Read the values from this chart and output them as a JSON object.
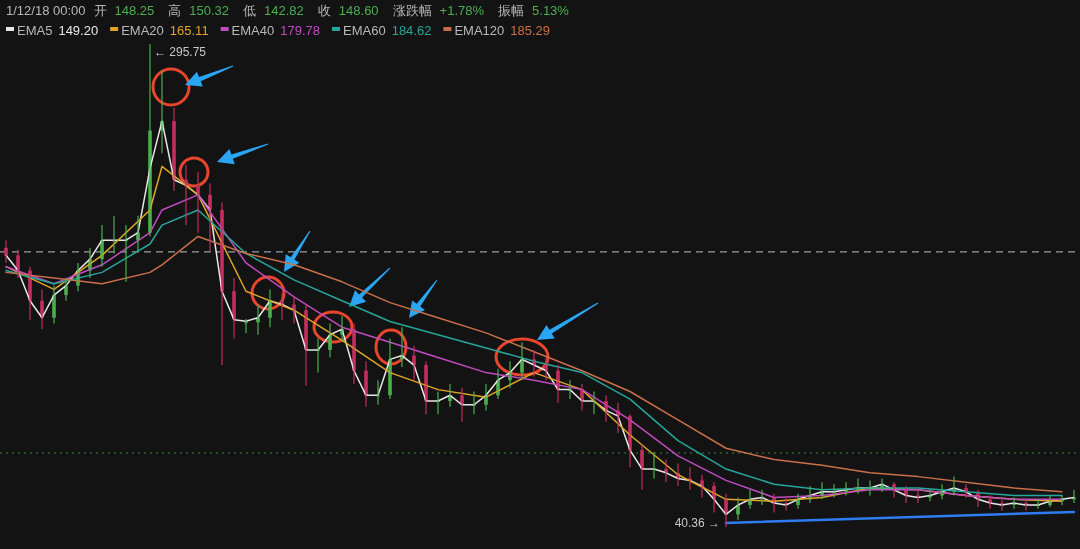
{
  "chart_data": {
    "type": "candlestick",
    "legend": "top left",
    "categories": [
      null,
      null,
      null,
      null,
      null,
      null,
      null,
      null,
      null,
      null,
      null,
      null,
      null,
      null,
      null,
      null,
      null,
      null,
      null,
      null,
      null,
      null,
      null,
      null,
      null,
      null,
      null,
      null,
      null,
      null,
      null,
      null,
      null,
      null,
      null,
      null,
      null,
      null,
      null,
      null,
      null,
      null,
      null,
      null,
      null,
      null,
      null,
      null,
      null,
      null,
      null,
      null,
      null,
      null,
      null,
      null,
      null,
      null,
      null,
      null,
      null,
      null,
      null,
      null,
      null,
      null,
      null,
      null,
      null,
      null,
      null,
      null,
      null,
      null,
      null,
      null,
      null,
      null,
      null,
      null,
      null,
      null,
      null,
      null,
      null,
      null,
      null,
      null,
      null,
      null
    ],
    "ohlc": [
      [
        188,
        192,
        180,
        184
      ],
      [
        184,
        187,
        172,
        176
      ],
      [
        176,
        178,
        150,
        160
      ],
      [
        160,
        166,
        145,
        151
      ],
      [
        151,
        168,
        148,
        163
      ],
      [
        163,
        172,
        160,
        168
      ],
      [
        168,
        180,
        165,
        176
      ],
      [
        176,
        188,
        172,
        182
      ],
      [
        182,
        200,
        178,
        192
      ],
      [
        192,
        205,
        185,
        192
      ],
      [
        192,
        200,
        170,
        192
      ],
      [
        192,
        205,
        186,
        196
      ],
      [
        196,
        295.75,
        194,
        250
      ],
      [
        250,
        282,
        238,
        255
      ],
      [
        255,
        262,
        218,
        224
      ],
      [
        224,
        232,
        200,
        221
      ],
      [
        221,
        228,
        196,
        216
      ],
      [
        216,
        222,
        186,
        208
      ],
      [
        208,
        212,
        126,
        165
      ],
      [
        165,
        172,
        140,
        150
      ],
      [
        148.25,
        150.32,
        142.82,
        148.6
      ],
      [
        148.6,
        158,
        142,
        151
      ],
      [
        151,
        166,
        146,
        160
      ],
      [
        160,
        164,
        150,
        158
      ],
      [
        158,
        162,
        148,
        155
      ],
      [
        155,
        158,
        115,
        134
      ],
      [
        134,
        140,
        122,
        134
      ],
      [
        134,
        148,
        130,
        142
      ],
      [
        142,
        152,
        138,
        145
      ],
      [
        145,
        148,
        116,
        123
      ],
      [
        123,
        128,
        104,
        110
      ],
      [
        110,
        118,
        105,
        110
      ],
      [
        110,
        140,
        108,
        129
      ],
      [
        129,
        146,
        125,
        131
      ],
      [
        131,
        136,
        118,
        126
      ],
      [
        126,
        128,
        100,
        107
      ],
      [
        107,
        112,
        100,
        107
      ],
      [
        107,
        116,
        104,
        110
      ],
      [
        110,
        114,
        96,
        105
      ],
      [
        105,
        112,
        100,
        105
      ],
      [
        105,
        116,
        102,
        110
      ],
      [
        110,
        124,
        108,
        118
      ],
      [
        118,
        128,
        114,
        122
      ],
      [
        122,
        138,
        118,
        129
      ],
      [
        129,
        134,
        120,
        126
      ],
      [
        126,
        130,
        118,
        123
      ],
      [
        123,
        126,
        106,
        113
      ],
      [
        113,
        118,
        108,
        113
      ],
      [
        113,
        116,
        102,
        107
      ],
      [
        107,
        112,
        100,
        107
      ],
      [
        107,
        110,
        96,
        102
      ],
      [
        102,
        106,
        90,
        99
      ],
      [
        99,
        100,
        72,
        81
      ],
      [
        81,
        84,
        60,
        71
      ],
      [
        71,
        80,
        66,
        71
      ],
      [
        71,
        76,
        64,
        69
      ],
      [
        69,
        74,
        62,
        66
      ],
      [
        66,
        72,
        60,
        65
      ],
      [
        65,
        68,
        56,
        62
      ],
      [
        62,
        64,
        48,
        55
      ],
      [
        55,
        58,
        40.36,
        47
      ],
      [
        47,
        56,
        44,
        52
      ],
      [
        52,
        60,
        50,
        55
      ],
      [
        55,
        60,
        52,
        56
      ],
      [
        56,
        58,
        48,
        53
      ],
      [
        53,
        56,
        49,
        52
      ],
      [
        52,
        58,
        50,
        55
      ],
      [
        55,
        62,
        53,
        57
      ],
      [
        57,
        64,
        55,
        59
      ],
      [
        59,
        63,
        56,
        59
      ],
      [
        59,
        64,
        57,
        60
      ],
      [
        60,
        66,
        58,
        61
      ],
      [
        61,
        65,
        57,
        61
      ],
      [
        61,
        66,
        59,
        63
      ],
      [
        63,
        64,
        56,
        60
      ],
      [
        60,
        62,
        53,
        57
      ],
      [
        57,
        60,
        53,
        56
      ],
      [
        56,
        60,
        54,
        57
      ],
      [
        57,
        63,
        55,
        59
      ],
      [
        59,
        67,
        57,
        61
      ],
      [
        61,
        63,
        56,
        59
      ],
      [
        59,
        60,
        51,
        55
      ],
      [
        55,
        57,
        50,
        53
      ],
      [
        53,
        55,
        49,
        52
      ],
      [
        52,
        56,
        50,
        53
      ],
      [
        53,
        55,
        49,
        52
      ],
      [
        52,
        55,
        50,
        52
      ],
      [
        52,
        57,
        51,
        54
      ],
      [
        54,
        57,
        52,
        55
      ],
      [
        55,
        60,
        53,
        56
      ]
    ],
    "series": [
      {
        "name": "EMA5",
        "type": "line",
        "color": "#e8e8e8",
        "values": [
          184,
          176,
          160,
          151,
          163,
          168,
          176,
          182,
          192,
          192,
          192,
          196,
          230,
          255,
          224,
          221,
          216,
          208,
          165,
          150,
          149.2,
          151,
          160,
          158,
          155,
          134,
          134,
          142,
          145,
          123,
          110,
          110,
          129,
          131,
          126,
          107,
          107,
          110,
          105,
          105,
          110,
          118,
          122,
          129,
          126,
          123,
          113,
          113,
          107,
          107,
          102,
          99,
          81,
          71,
          71,
          69,
          66,
          65,
          62,
          55,
          47,
          52,
          55,
          56,
          53,
          52,
          55,
          57,
          59,
          59,
          60,
          61,
          61,
          63,
          60,
          57,
          56,
          57,
          59,
          61,
          59,
          55,
          53,
          52,
          53,
          52,
          52,
          54,
          55,
          56
        ]
      },
      {
        "name": "EMA20",
        "type": "line",
        "color": "#e0a526",
        "values": [
          178,
          null,
          null,
          null,
          166,
          null,
          null,
          null,
          184,
          null,
          null,
          null,
          208,
          231,
          null,
          null,
          216,
          null,
          null,
          null,
          165,
          null,
          null,
          null,
          155,
          null,
          null,
          null,
          139,
          null,
          null,
          null,
          122,
          null,
          null,
          null,
          113,
          null,
          null,
          null,
          109,
          null,
          null,
          null,
          122,
          null,
          null,
          null,
          113,
          null,
          null,
          null,
          89,
          null,
          null,
          null,
          68,
          null,
          null,
          null,
          55,
          null,
          null,
          null,
          54,
          null,
          null,
          null,
          56,
          null,
          null,
          null,
          61,
          null,
          null,
          null,
          60,
          null,
          null,
          null,
          57,
          null,
          null,
          null,
          55,
          null,
          null,
          null,
          54,
          null
        ]
      },
      {
        "name": "EMA40",
        "type": "line",
        "color": "#c04bc0",
        "values": [
          178,
          null,
          null,
          null,
          169,
          null,
          null,
          null,
          179,
          null,
          null,
          null,
          196,
          208,
          null,
          null,
          216,
          null,
          null,
          null,
          180,
          null,
          null,
          null,
          162,
          null,
          null,
          null,
          146,
          null,
          null,
          null,
          138,
          null,
          null,
          null,
          130,
          null,
          null,
          null,
          122,
          null,
          null,
          null,
          118,
          null,
          null,
          null,
          113,
          null,
          null,
          null,
          97,
          null,
          null,
          null,
          78,
          null,
          null,
          null,
          65,
          null,
          null,
          null,
          56,
          null,
          null,
          null,
          57,
          null,
          null,
          null,
          60,
          null,
          null,
          null,
          60,
          null,
          null,
          null,
          57,
          null,
          null,
          null,
          55,
          null,
          null,
          null,
          55,
          null
        ]
      },
      {
        "name": "EMA60",
        "type": "line",
        "color": "#26a69a",
        "values": [
          176,
          null,
          null,
          null,
          169,
          null,
          null,
          null,
          175,
          null,
          null,
          null,
          190,
          200,
          null,
          null,
          208,
          null,
          null,
          null,
          185,
          null,
          null,
          null,
          171,
          null,
          null,
          null,
          160,
          null,
          null,
          null,
          149,
          null,
          null,
          null,
          142,
          null,
          null,
          null,
          135,
          null,
          null,
          null,
          128,
          null,
          null,
          null,
          122,
          null,
          null,
          null,
          108,
          null,
          null,
          null,
          86,
          null,
          null,
          null,
          71,
          null,
          null,
          null,
          63,
          null,
          null,
          null,
          60,
          null,
          null,
          null,
          61,
          null,
          null,
          null,
          61,
          null,
          null,
          null,
          59,
          null,
          null,
          null,
          57,
          null,
          null,
          null,
          57,
          null
        ]
      },
      {
        "name": "EMA120",
        "type": "line",
        "color": "#c8704a",
        "values": [
          175,
          null,
          null,
          null,
          172,
          null,
          null,
          null,
          169,
          null,
          null,
          null,
          175,
          179,
          null,
          null,
          194,
          null,
          null,
          null,
          185,
          null,
          null,
          null,
          179,
          null,
          null,
          null,
          170,
          null,
          null,
          null,
          159,
          null,
          null,
          null,
          151,
          null,
          null,
          null,
          143,
          null,
          null,
          null,
          133,
          null,
          null,
          null,
          123,
          null,
          null,
          null,
          112,
          null,
          null,
          null,
          97,
          null,
          null,
          null,
          82,
          null,
          null,
          null,
          76,
          null,
          null,
          null,
          73,
          null,
          null,
          null,
          69,
          null,
          null,
          null,
          67,
          null,
          null,
          null,
          64,
          null,
          null,
          null,
          61,
          null,
          null,
          null,
          59,
          null
        ]
      },
      {
        "type": "line",
        "color": "#2f7bf0",
        "values": [
          null,
          null,
          null,
          null,
          null,
          null,
          null,
          null,
          null,
          null,
          null,
          null,
          null,
          null,
          null,
          null,
          null,
          null,
          null,
          null,
          null,
          null,
          null,
          null,
          null,
          null,
          null,
          null,
          null,
          null,
          null,
          null,
          null,
          null,
          null,
          null,
          null,
          null,
          null,
          null,
          null,
          null,
          null,
          null,
          null,
          null,
          null,
          null,
          null,
          null,
          null,
          null,
          null,
          null,
          null,
          null,
          null,
          null,
          null,
          null,
          42.5,
          null,
          null,
          null,
          null,
          null,
          null,
          null,
          null,
          null,
          null,
          null,
          null,
          null,
          null,
          null,
          null,
          null,
          null,
          null,
          null,
          null,
          null,
          null,
          null,
          null,
          null,
          null,
          null,
          48.3
        ]
      }
    ],
    "ref_lines": [
      {
        "axis": "y",
        "value": 185.8,
        "color": "#9aa0a6",
        "line_style": "dashed"
      },
      {
        "axis": "y",
        "value": 79.5,
        "color": "#3a8a3a",
        "line_style": "dotted"
      }
    ],
    "annotations": [
      "1/12/18 00:00",
      "开",
      "148.25",
      "高",
      "150.32",
      "低",
      "142.82",
      "收",
      "148.60",
      "涨跌幅",
      "+1.78%",
      "振幅",
      "5.13%",
      "149.20",
      "165.11",
      "179.78",
      "184.62",
      "185.29",
      "← 295.75",
      "40.36 →"
    ]
  }
}
